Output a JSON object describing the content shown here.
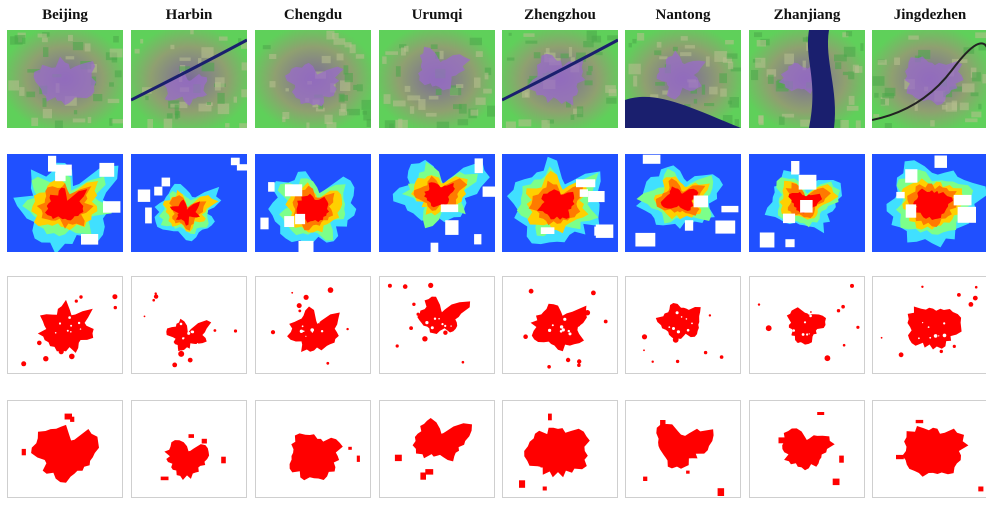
{
  "figure": {
    "cities": [
      "Beijing",
      "Harbin",
      "Chengdu",
      "Urumqi",
      "Zhengzhou",
      "Nantong",
      "Zhanjiang",
      "Jingdezhen"
    ],
    "row_types": [
      "satellite-image",
      "density-heatmap",
      "extraction-binary-fine",
      "extraction-binary-coarse"
    ],
    "colors": {
      "urban_red": "#ff0000",
      "heat_low": "#2050ff",
      "heat_mid": "#40e0ff",
      "heat_high": "#ffd000",
      "veg_green": "#5fd05a",
      "urban_purple": "#9a6cc8",
      "water_navy": "#1a1f6e"
    }
  }
}
